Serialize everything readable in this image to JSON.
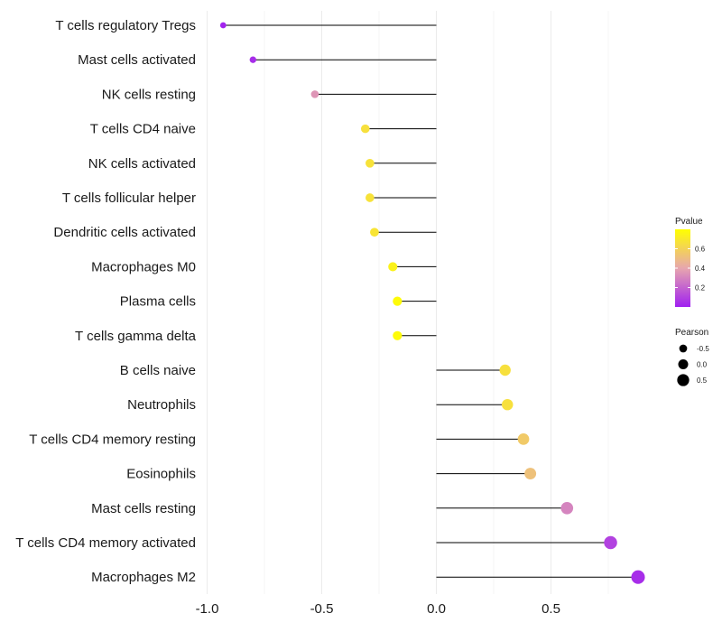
{
  "chart_data": {
    "type": "lollipop",
    "title": "",
    "xlabel": "",
    "ylabel": "",
    "xlim": [
      -1.0,
      0.9
    ],
    "x_ticks": [
      -1.0,
      -0.5,
      0.0,
      0.5
    ],
    "x_tick_labels": [
      "-1.0",
      "-0.5",
      "0.0",
      "0.5"
    ],
    "grid": true,
    "categories": [
      "T cells regulatory  Tregs",
      "Mast cells activated",
      "NK cells resting",
      "T cells CD4 naive",
      "NK cells activated",
      "T cells follicular helper",
      "Dendritic cells activated",
      "Macrophages M0",
      "Plasma cells",
      "T cells gamma delta",
      "B cells naive",
      "Neutrophils",
      "T cells CD4 memory resting",
      "Eosinophils",
      "Mast cells resting",
      "T cells CD4 memory activated",
      "Macrophages M2"
    ],
    "pearson": [
      -0.93,
      -0.8,
      -0.53,
      -0.31,
      -0.29,
      -0.29,
      -0.27,
      -0.19,
      -0.17,
      -0.17,
      0.3,
      0.31,
      0.38,
      0.41,
      0.57,
      0.76,
      0.88
    ],
    "pvalue": [
      0.01,
      0.04,
      0.35,
      0.66,
      0.67,
      0.67,
      0.68,
      0.74,
      0.78,
      0.78,
      0.66,
      0.66,
      0.56,
      0.52,
      0.3,
      0.1,
      0.04
    ],
    "legend_color": {
      "title": "Pvalue",
      "min": 0.0,
      "max": 0.8,
      "ticks": [
        0.2,
        0.4,
        0.6
      ],
      "tick_labels": [
        "0.2",
        "0.4",
        "0.6"
      ],
      "colors": [
        "#a020f0",
        "#e7a6ae",
        "#ffff00"
      ],
      "position": "right"
    },
    "legend_size": {
      "title": "Pearson",
      "values": [
        -0.5,
        0.0,
        0.5
      ],
      "labels": [
        "-0.5",
        "0.0",
        "0.5"
      ],
      "position": "right"
    }
  }
}
